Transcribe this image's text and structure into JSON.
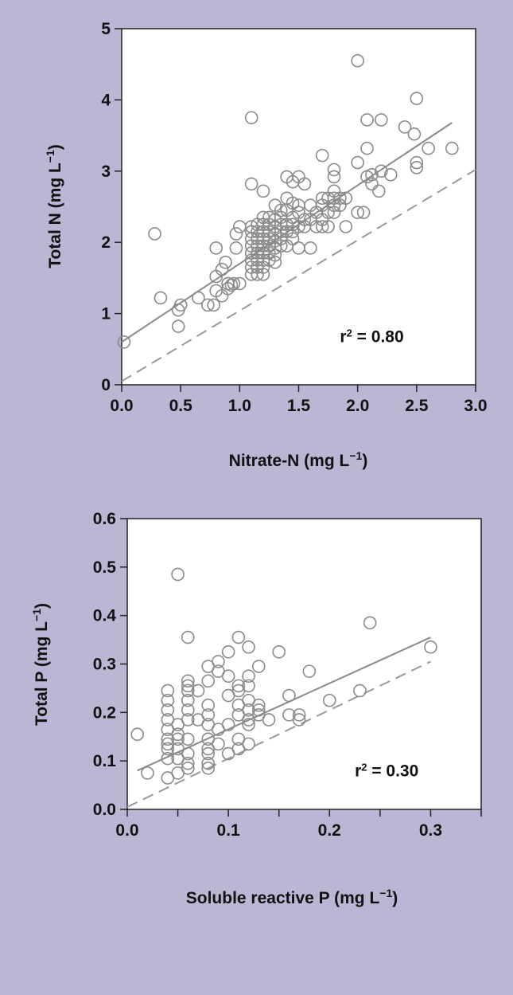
{
  "chart_data": [
    {
      "type": "scatter",
      "title": "",
      "xlabel": "Nitrate-N (mg L",
      "xlabel_sup": "−1",
      "xlabel_tail": ")",
      "ylabel": "Total N (mg L",
      "ylabel_sup": "−1",
      "ylabel_tail": ")",
      "xlim": [
        0,
        3.0
      ],
      "ylim": [
        0,
        5
      ],
      "xticks": [
        "0.0",
        "0.5",
        "1.0",
        "1.5",
        "2.0",
        "2.5",
        "3.0"
      ],
      "xtick_values": [
        0,
        0.5,
        1.0,
        1.5,
        2.0,
        2.5,
        3.0
      ],
      "yticks": [
        "0",
        "1",
        "2",
        "3",
        "4",
        "5"
      ],
      "ytick_values": [
        0,
        1,
        2,
        3,
        4,
        5
      ],
      "grid": false,
      "annotation": {
        "r": "r",
        "sup": "2",
        "rest": " = 0.80"
      },
      "annotation_pos": [
        1.85,
        0.6
      ],
      "marker_color": "#8a8a8a",
      "fit_line": {
        "x": [
          0,
          2.8
        ],
        "y": [
          0.6,
          3.68
        ],
        "color": "#8a8a8a",
        "style": "solid"
      },
      "one_to_one_line": {
        "x": [
          0,
          3.0
        ],
        "y": [
          0.05,
          3.02
        ],
        "color": "#9a9a9a",
        "style": "dashed"
      },
      "points": [
        [
          0.02,
          0.6
        ],
        [
          0.28,
          2.12
        ],
        [
          0.33,
          1.22
        ],
        [
          0.48,
          1.05
        ],
        [
          0.48,
          0.82
        ],
        [
          0.5,
          1.12
        ],
        [
          0.65,
          1.22
        ],
        [
          0.73,
          1.12
        ],
        [
          0.78,
          1.12
        ],
        [
          0.8,
          1.32
        ],
        [
          0.8,
          1.52
        ],
        [
          0.8,
          1.92
        ],
        [
          0.85,
          1.25
        ],
        [
          0.85,
          1.62
        ],
        [
          0.88,
          1.72
        ],
        [
          0.9,
          1.35
        ],
        [
          0.9,
          1.42
        ],
        [
          0.93,
          1.4
        ],
        [
          0.95,
          1.42
        ],
        [
          0.97,
          1.92
        ],
        [
          0.97,
          2.12
        ],
        [
          1.0,
          2.22
        ],
        [
          1.0,
          1.42
        ],
        [
          1.1,
          1.55
        ],
        [
          1.1,
          1.65
        ],
        [
          1.1,
          1.75
        ],
        [
          1.1,
          1.85
        ],
        [
          1.1,
          1.95
        ],
        [
          1.1,
          2.05
        ],
        [
          1.1,
          2.15
        ],
        [
          1.1,
          2.22
        ],
        [
          1.1,
          2.82
        ],
        [
          1.1,
          3.75
        ],
        [
          1.15,
          1.55
        ],
        [
          1.15,
          1.65
        ],
        [
          1.15,
          1.75
        ],
        [
          1.15,
          1.85
        ],
        [
          1.15,
          1.95
        ],
        [
          1.15,
          2.05
        ],
        [
          1.15,
          2.15
        ],
        [
          1.15,
          2.25
        ],
        [
          1.2,
          1.55
        ],
        [
          1.2,
          1.65
        ],
        [
          1.2,
          1.75
        ],
        [
          1.2,
          1.85
        ],
        [
          1.2,
          1.95
        ],
        [
          1.2,
          2.05
        ],
        [
          1.2,
          2.15
        ],
        [
          1.2,
          2.25
        ],
        [
          1.2,
          2.35
        ],
        [
          1.2,
          2.72
        ],
        [
          1.25,
          1.75
        ],
        [
          1.25,
          1.85
        ],
        [
          1.25,
          1.95
        ],
        [
          1.25,
          2.05
        ],
        [
          1.25,
          2.15
        ],
        [
          1.25,
          2.25
        ],
        [
          1.25,
          2.35
        ],
        [
          1.3,
          1.72
        ],
        [
          1.3,
          1.82
        ],
        [
          1.3,
          1.92
        ],
        [
          1.3,
          2.02
        ],
        [
          1.3,
          2.12
        ],
        [
          1.3,
          2.22
        ],
        [
          1.3,
          2.32
        ],
        [
          1.3,
          2.52
        ],
        [
          1.35,
          1.95
        ],
        [
          1.35,
          2.05
        ],
        [
          1.35,
          2.15
        ],
        [
          1.35,
          2.25
        ],
        [
          1.35,
          2.35
        ],
        [
          1.35,
          2.45
        ],
        [
          1.4,
          1.95
        ],
        [
          1.4,
          2.15
        ],
        [
          1.4,
          2.25
        ],
        [
          1.4,
          2.45
        ],
        [
          1.4,
          2.62
        ],
        [
          1.4,
          2.92
        ],
        [
          1.45,
          2.05
        ],
        [
          1.45,
          2.15
        ],
        [
          1.45,
          2.25
        ],
        [
          1.45,
          2.35
        ],
        [
          1.45,
          2.55
        ],
        [
          1.45,
          2.85
        ],
        [
          1.5,
          1.92
        ],
        [
          1.5,
          2.22
        ],
        [
          1.5,
          2.42
        ],
        [
          1.5,
          2.52
        ],
        [
          1.5,
          2.92
        ],
        [
          1.55,
          2.22
        ],
        [
          1.55,
          2.32
        ],
        [
          1.55,
          2.82
        ],
        [
          1.6,
          1.92
        ],
        [
          1.6,
          2.32
        ],
        [
          1.6,
          2.52
        ],
        [
          1.65,
          2.22
        ],
        [
          1.65,
          2.42
        ],
        [
          1.7,
          2.22
        ],
        [
          1.7,
          2.32
        ],
        [
          1.7,
          2.52
        ],
        [
          1.7,
          2.62
        ],
        [
          1.7,
          3.22
        ],
        [
          1.75,
          2.22
        ],
        [
          1.75,
          2.42
        ],
        [
          1.75,
          2.62
        ],
        [
          1.8,
          2.42
        ],
        [
          1.8,
          2.52
        ],
        [
          1.8,
          2.62
        ],
        [
          1.8,
          2.72
        ],
        [
          1.8,
          2.92
        ],
        [
          1.8,
          3.02
        ],
        [
          1.85,
          2.52
        ],
        [
          1.85,
          2.62
        ],
        [
          1.9,
          2.22
        ],
        [
          1.9,
          2.62
        ],
        [
          2.0,
          2.42
        ],
        [
          2.0,
          3.12
        ],
        [
          2.0,
          4.55
        ],
        [
          2.05,
          2.42
        ],
        [
          2.08,
          2.92
        ],
        [
          2.08,
          3.32
        ],
        [
          2.08,
          3.72
        ],
        [
          2.12,
          2.82
        ],
        [
          2.12,
          2.95
        ],
        [
          2.18,
          2.72
        ],
        [
          2.2,
          3.0
        ],
        [
          2.2,
          3.72
        ],
        [
          2.28,
          2.95
        ],
        [
          2.4,
          3.62
        ],
        [
          2.48,
          3.52
        ],
        [
          2.5,
          4.02
        ],
        [
          2.5,
          3.05
        ],
        [
          2.5,
          3.12
        ],
        [
          2.6,
          3.32
        ],
        [
          2.8,
          3.32
        ]
      ]
    },
    {
      "type": "scatter",
      "title": "",
      "xlabel": "Soluble reactive P (mg L",
      "xlabel_sup": "−1",
      "xlabel_tail": ")",
      "ylabel": "Total P (mg L",
      "ylabel_sup": "−1",
      "ylabel_tail": ")",
      "xlim": [
        0,
        0.35
      ],
      "ylim": [
        0,
        0.6
      ],
      "xticks": [
        "0.0",
        "0.1",
        "0.2",
        "0.3"
      ],
      "xtick_values": [
        0,
        0.1,
        0.2,
        0.3
      ],
      "minor_xtick_values": [
        0.05,
        0.15,
        0.25,
        0.35
      ],
      "yticks": [
        "0.0",
        "0.1",
        "0.2",
        "0.3",
        "0.4",
        "0.5",
        "0.6"
      ],
      "ytick_values": [
        0,
        0.1,
        0.2,
        0.3,
        0.4,
        0.5,
        0.6
      ],
      "grid": false,
      "annotation": {
        "r": "r",
        "sup": "2",
        "rest": " = 0.30"
      },
      "annotation_pos": [
        0.225,
        0.068
      ],
      "marker_color": "#8a8a8a",
      "fit_line": {
        "x": [
          0.01,
          0.3
        ],
        "y": [
          0.08,
          0.355
        ],
        "color": "#8a8a8a",
        "style": "solid"
      },
      "one_to_one_line": {
        "x": [
          0,
          0.3
        ],
        "y": [
          0.005,
          0.305
        ],
        "color": "#9a9a9a",
        "style": "dashed"
      },
      "points": [
        [
          0.01,
          0.155
        ],
        [
          0.02,
          0.075
        ],
        [
          0.04,
          0.065
        ],
        [
          0.04,
          0.105
        ],
        [
          0.04,
          0.125
        ],
        [
          0.04,
          0.135
        ],
        [
          0.04,
          0.145
        ],
        [
          0.04,
          0.165
        ],
        [
          0.04,
          0.185
        ],
        [
          0.04,
          0.205
        ],
        [
          0.04,
          0.225
        ],
        [
          0.04,
          0.245
        ],
        [
          0.05,
          0.075
        ],
        [
          0.05,
          0.105
        ],
        [
          0.05,
          0.125
        ],
        [
          0.05,
          0.145
        ],
        [
          0.05,
          0.155
        ],
        [
          0.05,
          0.175
        ],
        [
          0.05,
          0.485
        ],
        [
          0.06,
          0.085
        ],
        [
          0.06,
          0.095
        ],
        [
          0.06,
          0.115
        ],
        [
          0.06,
          0.145
        ],
        [
          0.06,
          0.185
        ],
        [
          0.06,
          0.205
        ],
        [
          0.06,
          0.225
        ],
        [
          0.06,
          0.245
        ],
        [
          0.06,
          0.255
        ],
        [
          0.06,
          0.265
        ],
        [
          0.06,
          0.355
        ],
        [
          0.07,
          0.185
        ],
        [
          0.07,
          0.245
        ],
        [
          0.08,
          0.085
        ],
        [
          0.08,
          0.095
        ],
        [
          0.08,
          0.115
        ],
        [
          0.08,
          0.125
        ],
        [
          0.08,
          0.145
        ],
        [
          0.08,
          0.175
        ],
        [
          0.08,
          0.195
        ],
        [
          0.08,
          0.215
        ],
        [
          0.08,
          0.265
        ],
        [
          0.08,
          0.295
        ],
        [
          0.09,
          0.135
        ],
        [
          0.09,
          0.165
        ],
        [
          0.09,
          0.285
        ],
        [
          0.09,
          0.305
        ],
        [
          0.1,
          0.115
        ],
        [
          0.1,
          0.175
        ],
        [
          0.1,
          0.235
        ],
        [
          0.1,
          0.275
        ],
        [
          0.1,
          0.325
        ],
        [
          0.11,
          0.125
        ],
        [
          0.11,
          0.145
        ],
        [
          0.11,
          0.195
        ],
        [
          0.11,
          0.215
        ],
        [
          0.11,
          0.245
        ],
        [
          0.11,
          0.255
        ],
        [
          0.11,
          0.355
        ],
        [
          0.12,
          0.135
        ],
        [
          0.12,
          0.175
        ],
        [
          0.12,
          0.185
        ],
        [
          0.12,
          0.205
        ],
        [
          0.12,
          0.225
        ],
        [
          0.12,
          0.255
        ],
        [
          0.12,
          0.275
        ],
        [
          0.12,
          0.335
        ],
        [
          0.13,
          0.195
        ],
        [
          0.13,
          0.205
        ],
        [
          0.13,
          0.215
        ],
        [
          0.13,
          0.295
        ],
        [
          0.14,
          0.185
        ],
        [
          0.15,
          0.325
        ],
        [
          0.16,
          0.195
        ],
        [
          0.16,
          0.235
        ],
        [
          0.17,
          0.185
        ],
        [
          0.17,
          0.195
        ],
        [
          0.18,
          0.285
        ],
        [
          0.2,
          0.225
        ],
        [
          0.23,
          0.245
        ],
        [
          0.24,
          0.385
        ],
        [
          0.3,
          0.335
        ]
      ]
    }
  ]
}
